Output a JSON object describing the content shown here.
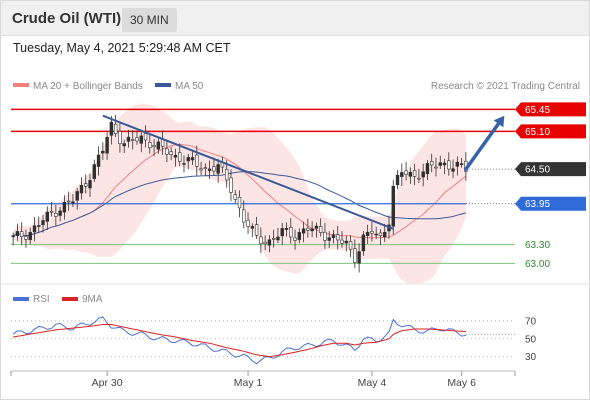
{
  "header": {
    "title": "Crude Oil (WTI)",
    "timeframe": "30 MIN"
  },
  "timestamp": "Tuesday, May 4, 2021 5:29:48 AM CET",
  "legend": [
    {
      "label": "MA 20 + Bollinger Bands",
      "color": "#f08080"
    },
    {
      "label": "MA 50",
      "color": "#3b5998"
    }
  ],
  "copyright": "Research © 2021 Trading Central",
  "colors": {
    "resistance": "#e60000",
    "pivot": "#2f6bd9",
    "support": "#7cc47c",
    "last_price": "#333333",
    "arrow": "#3463a8",
    "trendline": "#3b5998",
    "bullish_candle": "#2f2f2f",
    "bearish_candle": "#ffffff",
    "bollinger_fill": "#fde2e2",
    "ma20": "#f08080",
    "ma50": "#3b5998",
    "rsi": "#4a6fd6",
    "rsi_ma": "#dd2222"
  },
  "chart_data": [
    {
      "type": "candlestick",
      "title": "",
      "ylim": [
        62.8,
        65.6
      ],
      "x_ticks": [
        "Apr 30",
        "May 1",
        "May 4",
        "May 6"
      ],
      "levels": [
        {
          "value": 65.45,
          "label": "65.45",
          "role": "resistance"
        },
        {
          "value": 65.1,
          "label": "65.10",
          "role": "resistance"
        },
        {
          "value": 64.5,
          "label": "64.50",
          "role": "last_price"
        },
        {
          "value": 63.95,
          "label": "63.95",
          "role": "pivot"
        },
        {
          "value": 63.3,
          "label": "63.30",
          "role": "support"
        },
        {
          "value": 63.0,
          "label": "63.00",
          "role": "support"
        }
      ],
      "close_path": [
        [
          0,
          63.4
        ],
        [
          4,
          63.5
        ],
        [
          9,
          63.8
        ],
        [
          14,
          64.0
        ],
        [
          18,
          64.4
        ],
        [
          21,
          64.8
        ],
        [
          23,
          65.2
        ],
        [
          26,
          64.9
        ],
        [
          30,
          65.0
        ],
        [
          34,
          64.85
        ],
        [
          38,
          64.7
        ],
        [
          42,
          64.6
        ],
        [
          45,
          64.5
        ],
        [
          48,
          64.55
        ],
        [
          51,
          64.2
        ],
        [
          54,
          63.7
        ],
        [
          57,
          63.4
        ],
        [
          60,
          63.35
        ],
        [
          63,
          63.5
        ],
        [
          66,
          63.45
        ],
        [
          69,
          63.55
        ],
        [
          72,
          63.5
        ],
        [
          75,
          63.4
        ],
        [
          78,
          63.3
        ],
        [
          80,
          63.1
        ],
        [
          82,
          63.4
        ],
        [
          84,
          63.5
        ],
        [
          86,
          63.4
        ],
        [
          88,
          63.7
        ],
        [
          89,
          64.2
        ],
        [
          91,
          64.45
        ],
        [
          94,
          64.4
        ],
        [
          97,
          64.5
        ],
        [
          100,
          64.6
        ],
        [
          103,
          64.55
        ],
        [
          106,
          64.5
        ]
      ],
      "trendline": {
        "from": [
          21,
          65.35
        ],
        "to": [
          89,
          63.55
        ]
      },
      "arrow": {
        "from": [
          106,
          64.5
        ],
        "to": [
          115,
          65.35
        ]
      },
      "series": [
        {
          "name": "MA 20 + Bollinger Bands"
        },
        {
          "name": "MA 50"
        }
      ]
    },
    {
      "type": "line",
      "title": "RSI",
      "ylim": [
        15,
        80
      ],
      "y_ticks": [
        70,
        50,
        30
      ],
      "series": [
        {
          "name": "RSI",
          "values": [
            [
              0,
              55
            ],
            [
              5,
              60
            ],
            [
              10,
              65
            ],
            [
              14,
              62
            ],
            [
              18,
              68
            ],
            [
              21,
              72
            ],
            [
              23,
              65
            ],
            [
              26,
              58
            ],
            [
              30,
              55
            ],
            [
              34,
              50
            ],
            [
              38,
              48
            ],
            [
              42,
              45
            ],
            [
              46,
              40
            ],
            [
              50,
              35
            ],
            [
              54,
              30
            ],
            [
              57,
              25
            ],
            [
              60,
              28
            ],
            [
              63,
              35
            ],
            [
              66,
              40
            ],
            [
              69,
              42
            ],
            [
              72,
              45
            ],
            [
              75,
              48
            ],
            [
              78,
              42
            ],
            [
              80,
              38
            ],
            [
              82,
              50
            ],
            [
              85,
              48
            ],
            [
              88,
              55
            ],
            [
              89,
              70
            ],
            [
              91,
              66
            ],
            [
              94,
              60
            ],
            [
              97,
              58
            ],
            [
              100,
              62
            ],
            [
              103,
              58
            ],
            [
              106,
              55
            ]
          ]
        },
        {
          "name": "9MA",
          "values": [
            [
              0,
              52
            ],
            [
              5,
              56
            ],
            [
              10,
              60
            ],
            [
              14,
              62
            ],
            [
              18,
              64
            ],
            [
              21,
              66
            ],
            [
              23,
              66
            ],
            [
              26,
              63
            ],
            [
              30,
              59
            ],
            [
              34,
              55
            ],
            [
              38,
              52
            ],
            [
              42,
              48
            ],
            [
              46,
              45
            ],
            [
              50,
              40
            ],
            [
              54,
              36
            ],
            [
              57,
              32
            ],
            [
              60,
              30
            ],
            [
              63,
              32
            ],
            [
              66,
              35
            ],
            [
              69,
              38
            ],
            [
              72,
              42
            ],
            [
              75,
              45
            ],
            [
              78,
              45
            ],
            [
              80,
              43
            ],
            [
              82,
              45
            ],
            [
              85,
              46
            ],
            [
              88,
              50
            ],
            [
              89,
              55
            ],
            [
              91,
              59
            ],
            [
              94,
              61
            ],
            [
              97,
              61
            ],
            [
              100,
              60
            ],
            [
              103,
              59
            ],
            [
              106,
              58
            ]
          ]
        }
      ]
    }
  ]
}
